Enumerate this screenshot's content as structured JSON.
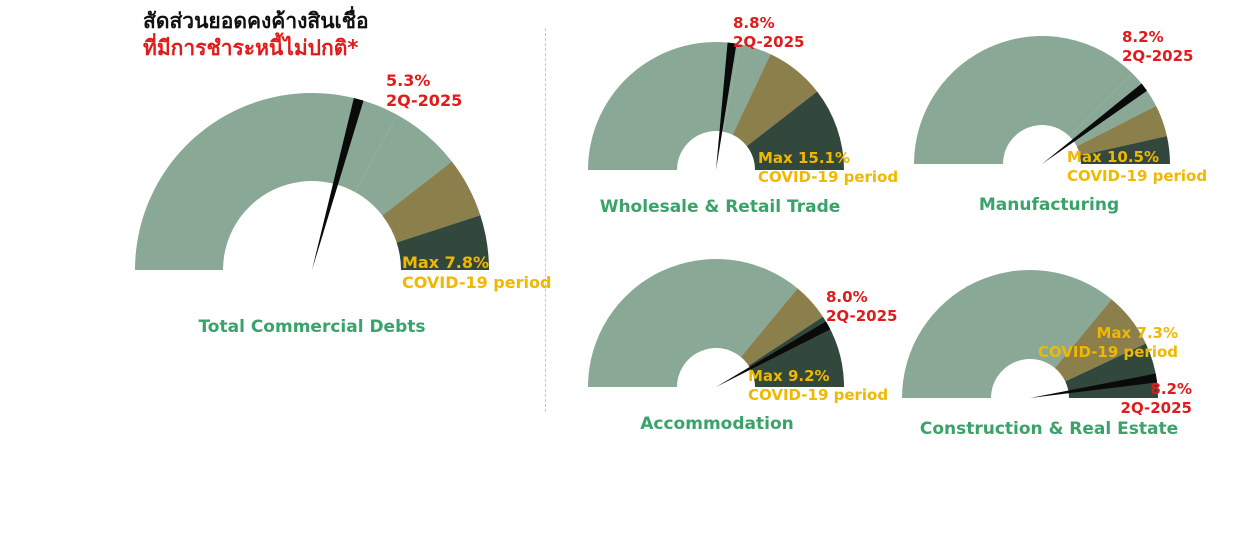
{
  "header": {
    "title_line1": "สัดส่วนยอดคงค้างสินเชื่อ",
    "title_line2": "ที่มีการชำระหนี้ไม่ปกติ*"
  },
  "colors": {
    "green_light": "#89a996",
    "olive": "#8b7f4b",
    "dark": "#33483c",
    "needle": "#0a0a0a",
    "red": "#e11b1b",
    "yellow": "#f0b800",
    "label_green": "#3aa36a"
  },
  "chart_data": [
    {
      "type": "gauge",
      "title": "Total Commercial Debts",
      "band_colors": [
        "#89a996",
        "#89a996",
        "#8b7f4b",
        "#33483c"
      ],
      "band_ends": [
        0.66,
        0.79,
        0.9,
        1.0
      ],
      "needle_value": 0.585,
      "needle_label": "5.3%",
      "needle_sublabel": "2Q-2025",
      "max_label": "Max 7.8%",
      "max_sublabel": "COVID-19  period"
    },
    {
      "type": "gauge",
      "title": "Wholesale & Retail Trade",
      "band_colors": [
        "#89a996",
        "#89a996",
        "#8b7f4b",
        "#33483c"
      ],
      "band_ends": [
        0.56,
        0.64,
        0.79,
        1.0
      ],
      "needle_value": 0.54,
      "needle_label": "8.8%",
      "needle_sublabel": "2Q-2025",
      "max_label": "Max 15.1%",
      "max_sublabel": "COVID-19 period"
    },
    {
      "type": "gauge",
      "title": "Manufacturing",
      "band_colors": [
        "#89a996",
        "#89a996",
        "#8b7f4b",
        "#33483c"
      ],
      "band_ends": [
        0.75,
        0.85,
        0.93,
        1.0
      ],
      "needle_value": 0.795,
      "needle_label": "8.2%",
      "needle_sublabel": "2Q-2025",
      "max_label": "Max 10.5%",
      "max_sublabel": "COVID-19 period"
    },
    {
      "type": "gauge",
      "title": "Accommodation",
      "band_colors": [
        "#89a996",
        "#8b7f4b",
        "#33483c"
      ],
      "band_ends": [
        0.72,
        0.815,
        1.0
      ],
      "needle_value": 0.84,
      "needle_label": "8.0%",
      "needle_sublabel": "2Q-2025",
      "max_label": "Max 9.2%",
      "max_sublabel": "COVID-19 period"
    },
    {
      "type": "gauge",
      "title": "Construction & Real Estate",
      "band_colors": [
        "#89a996",
        "#8b7f4b",
        "#33483c"
      ],
      "band_ends": [
        0.72,
        0.86,
        1.0
      ],
      "needle_value": 0.95,
      "needle_label": "8.2%",
      "needle_sublabel": "2Q-2025",
      "max_label": "Max 7.3%",
      "max_sublabel": "COVID-19 period"
    }
  ]
}
